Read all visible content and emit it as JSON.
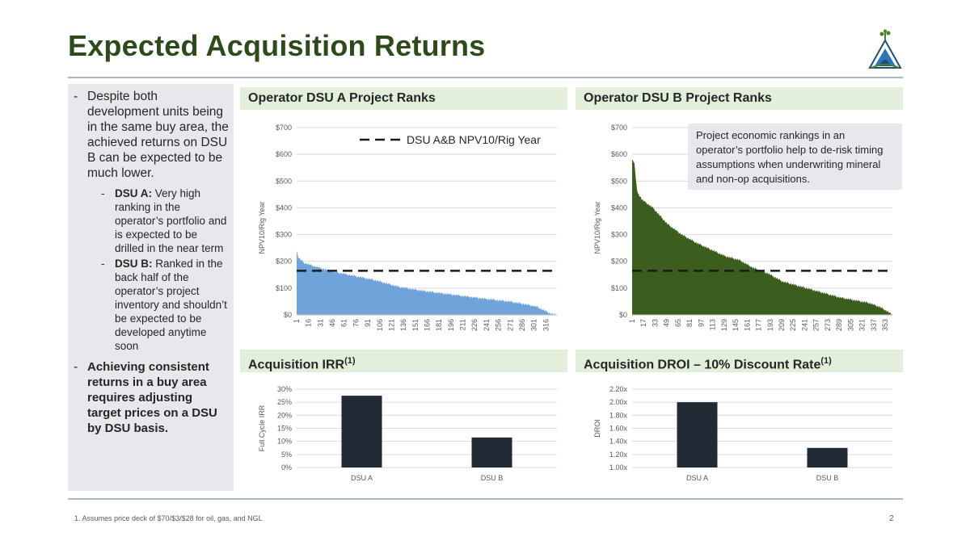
{
  "page": {
    "title": "Expected Acquisition Returns",
    "footnote": "1.    Assumes price deck of $70/$3/$28 for oil, gas, and NGL",
    "page_number": "2"
  },
  "left_panel": {
    "intro": "Despite both development units being in the same buy area, the achieved returns on DSU B can be expected to be much lower.",
    "dsu_a_label": "DSU A:",
    "dsu_a_text": " Very high ranking in the operator’s portfolio and is expected to be drilled in the near term",
    "dsu_b_label": "DSU B:",
    "dsu_b_text": " Ranked in the back half of the operator’s project inventory and shouldn’t be expected to be developed anytime soon",
    "conclusion": "Achieving consistent returns in a buy area requires adjusting target prices on a DSU by DSU basis."
  },
  "sections": {
    "dsu_a_ranks": "Operator DSU A Project Ranks",
    "dsu_b_ranks": "Operator DSU B Project Ranks",
    "irr": "Acquisition IRR",
    "irr_sup": "(1)",
    "droi": "Acquisition DROI – 10% Discount Rate",
    "droi_sup": "(1)"
  },
  "callout": "Project economic rankings in an operator’s portfolio help to de-risk timing assumptions when underwriting mineral and non-op acquisitions.",
  "colors": {
    "title": "#2e4a1c",
    "dsu_a_area": "#6fa3da",
    "dsu_b_area": "#3b5e1f",
    "bar": "#222a35",
    "header_bg": "#e2efdb",
    "panel_bg": "#e6e8ec"
  },
  "chart_data": [
    {
      "id": "dsu_a",
      "type": "area",
      "ylabel": "NPV10/Rig Year",
      "ylim": [
        0,
        700
      ],
      "yticks": [
        "$0",
        "$100",
        "$200",
        "$300",
        "$400",
        "$500",
        "$600",
        "$700"
      ],
      "x_count": 330,
      "xticks": [
        "1",
        "16",
        "31",
        "46",
        "61",
        "76",
        "91",
        "106",
        "121",
        "136",
        "151",
        "166",
        "181",
        "196",
        "211",
        "226",
        "241",
        "256",
        "271",
        "286",
        "301",
        "316"
      ],
      "curve": [
        [
          1,
          240
        ],
        [
          3,
          215
        ],
        [
          10,
          195
        ],
        [
          25,
          180
        ],
        [
          50,
          160
        ],
        [
          75,
          145
        ],
        [
          100,
          130
        ],
        [
          130,
          105
        ],
        [
          160,
          90
        ],
        [
          200,
          75
        ],
        [
          240,
          60
        ],
        [
          270,
          50
        ],
        [
          290,
          40
        ],
        [
          305,
          30
        ],
        [
          315,
          15
        ],
        [
          322,
          5
        ],
        [
          330,
          0
        ]
      ],
      "reference_value": 165,
      "legend_label": "DSU A&B NPV10/Rig Year",
      "legend_position": "top-right"
    },
    {
      "id": "dsu_b",
      "type": "area",
      "ylabel": "NPV10/Rig Year",
      "ylim": [
        0,
        700
      ],
      "yticks": [
        "$0",
        "$100",
        "$200",
        "$300",
        "$400",
        "$500",
        "$600",
        "$700"
      ],
      "x_count": 363,
      "xticks": [
        "1",
        "17",
        "33",
        "49",
        "65",
        "81",
        "97",
        "113",
        "129",
        "145",
        "161",
        "177",
        "193",
        "209",
        "225",
        "241",
        "257",
        "273",
        "289",
        "305",
        "321",
        "337",
        "353"
      ],
      "curve": [
        [
          1,
          580
        ],
        [
          4,
          570
        ],
        [
          8,
          460
        ],
        [
          15,
          430
        ],
        [
          30,
          400
        ],
        [
          50,
          340
        ],
        [
          70,
          300
        ],
        [
          90,
          270
        ],
        [
          110,
          245
        ],
        [
          130,
          220
        ],
        [
          150,
          205
        ],
        [
          170,
          175
        ],
        [
          190,
          155
        ],
        [
          210,
          125
        ],
        [
          230,
          110
        ],
        [
          250,
          95
        ],
        [
          270,
          80
        ],
        [
          290,
          65
        ],
        [
          310,
          55
        ],
        [
          330,
          45
        ],
        [
          345,
          30
        ],
        [
          355,
          15
        ],
        [
          363,
          0
        ]
      ],
      "reference_value": 165
    },
    {
      "id": "irr",
      "type": "bar",
      "ylabel": "Full Cycle IRR",
      "ylim": [
        0,
        30
      ],
      "yticks": [
        "0%",
        "5%",
        "10%",
        "15%",
        "20%",
        "25%",
        "30%"
      ],
      "categories": [
        "DSU A",
        "DSU B"
      ],
      "values": [
        27.5,
        11.5
      ]
    },
    {
      "id": "droi",
      "type": "bar",
      "ylabel": "DROI",
      "ylim": [
        1.0,
        2.2
      ],
      "yticks": [
        "1.00x",
        "1.20x",
        "1.40x",
        "1.60x",
        "1.80x",
        "2.00x",
        "2.20x"
      ],
      "categories": [
        "DSU A",
        "DSU B"
      ],
      "values": [
        2.0,
        1.3
      ]
    }
  ]
}
